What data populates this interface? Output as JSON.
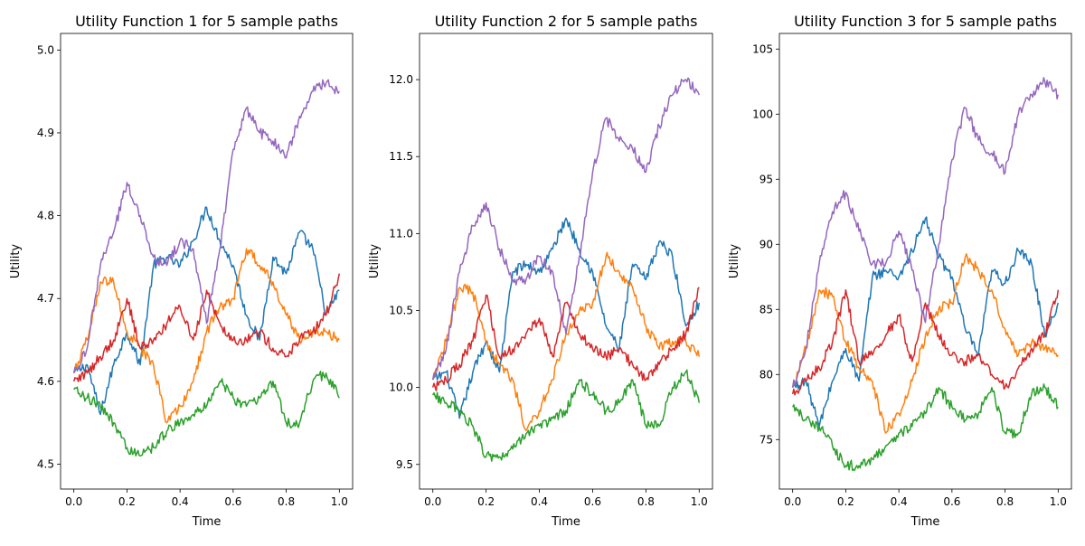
{
  "figure": {
    "colors": [
      "#1f77b4",
      "#ff7f0e",
      "#2ca02c",
      "#d62728",
      "#9467bd"
    ]
  },
  "chart_data": [
    {
      "type": "line",
      "title": "Utility Function 1 for 5 sample paths",
      "xlabel": "Time",
      "ylabel": "Utility",
      "xlim": [
        -0.05,
        1.05
      ],
      "ylim": [
        4.47,
        5.02
      ],
      "xticks": [
        "0.0",
        "0.2",
        "0.4",
        "0.6",
        "0.8",
        "1.0"
      ],
      "yticks": [
        "4.5",
        "4.6",
        "4.7",
        "4.8",
        "4.9",
        "5.0"
      ],
      "x": [
        0.0,
        0.05,
        0.1,
        0.15,
        0.2,
        0.25,
        0.3,
        0.35,
        0.4,
        0.45,
        0.5,
        0.55,
        0.6,
        0.65,
        0.7,
        0.75,
        0.8,
        0.85,
        0.9,
        0.95,
        1.0
      ],
      "series": [
        {
          "values": [
            4.61,
            4.62,
            4.56,
            4.62,
            4.66,
            4.62,
            4.74,
            4.75,
            4.74,
            4.77,
            4.81,
            4.77,
            4.74,
            4.68,
            4.65,
            4.75,
            4.73,
            4.78,
            4.76,
            4.68,
            4.71
          ]
        },
        {
          "values": [
            4.61,
            4.65,
            4.72,
            4.72,
            4.66,
            4.64,
            4.62,
            4.55,
            4.57,
            4.6,
            4.66,
            4.69,
            4.7,
            4.76,
            4.74,
            4.72,
            4.68,
            4.65,
            4.66,
            4.66,
            4.65
          ]
        },
        {
          "values": [
            4.59,
            4.58,
            4.57,
            4.55,
            4.52,
            4.51,
            4.52,
            4.54,
            4.55,
            4.56,
            4.57,
            4.6,
            4.58,
            4.57,
            4.58,
            4.6,
            4.55,
            4.55,
            4.6,
            4.61,
            4.58
          ]
        },
        {
          "values": [
            4.6,
            4.61,
            4.63,
            4.65,
            4.7,
            4.64,
            4.65,
            4.67,
            4.69,
            4.65,
            4.71,
            4.67,
            4.65,
            4.65,
            4.66,
            4.64,
            4.63,
            4.65,
            4.66,
            4.68,
            4.73
          ]
        },
        {
          "values": [
            4.61,
            4.64,
            4.74,
            4.78,
            4.84,
            4.8,
            4.75,
            4.74,
            4.77,
            4.76,
            4.67,
            4.76,
            4.88,
            4.93,
            4.9,
            4.89,
            4.87,
            4.92,
            4.95,
            4.96,
            4.95
          ]
        }
      ]
    },
    {
      "type": "line",
      "title": "Utility Function 2 for 5 sample paths",
      "xlabel": "Time",
      "ylabel": "Utility",
      "xlim": [
        -0.05,
        1.05
      ],
      "ylim": [
        9.34,
        12.3
      ],
      "xticks": [
        "0.0",
        "0.2",
        "0.4",
        "0.6",
        "0.8",
        "1.0"
      ],
      "yticks": [
        "9.5",
        "10.0",
        "10.5",
        "11.0",
        "11.5",
        "12.0"
      ],
      "x": [
        0.0,
        0.05,
        0.1,
        0.15,
        0.2,
        0.25,
        0.3,
        0.35,
        0.4,
        0.45,
        0.5,
        0.55,
        0.6,
        0.65,
        0.7,
        0.75,
        0.8,
        0.85,
        0.9,
        0.95,
        1.0
      ],
      "series": [
        {
          "values": [
            10.05,
            10.1,
            9.8,
            10.1,
            10.3,
            10.1,
            10.75,
            10.8,
            10.75,
            10.9,
            11.1,
            10.9,
            10.75,
            10.4,
            10.25,
            10.8,
            10.7,
            10.95,
            10.85,
            10.4,
            10.55
          ]
        },
        {
          "values": [
            10.05,
            10.3,
            10.65,
            10.62,
            10.3,
            10.15,
            10.05,
            9.72,
            9.85,
            10.05,
            10.35,
            10.5,
            10.55,
            10.85,
            10.75,
            10.65,
            10.4,
            10.25,
            10.3,
            10.3,
            10.2
          ]
        },
        {
          "values": [
            9.95,
            9.9,
            9.85,
            9.75,
            9.55,
            9.55,
            9.6,
            9.7,
            9.75,
            9.8,
            9.85,
            10.05,
            9.95,
            9.85,
            9.9,
            10.05,
            9.75,
            9.75,
            10.0,
            10.1,
            9.9
          ]
        },
        {
          "values": [
            10.0,
            10.05,
            10.15,
            10.3,
            10.6,
            10.2,
            10.25,
            10.35,
            10.45,
            10.2,
            10.55,
            10.35,
            10.25,
            10.2,
            10.25,
            10.15,
            10.05,
            10.15,
            10.25,
            10.35,
            10.65
          ]
        },
        {
          "values": [
            10.05,
            10.25,
            10.75,
            11.05,
            11.2,
            10.9,
            10.7,
            10.7,
            10.85,
            10.75,
            10.35,
            10.85,
            11.4,
            11.75,
            11.6,
            11.55,
            11.4,
            11.7,
            11.9,
            12.0,
            11.9
          ]
        }
      ]
    },
    {
      "type": "line",
      "title": "Utility Function 3 for 5 sample paths",
      "xlabel": "Time",
      "ylabel": "Utility",
      "xlim": [
        -0.05,
        1.05
      ],
      "ylim": [
        71.2,
        106.2
      ],
      "xticks": [
        "0.0",
        "0.2",
        "0.4",
        "0.6",
        "0.8",
        "1.0"
      ],
      "yticks": [
        "75",
        "80",
        "85",
        "90",
        "95",
        "100",
        "105"
      ],
      "x": [
        0.0,
        0.05,
        0.1,
        0.15,
        0.2,
        0.25,
        0.3,
        0.35,
        0.4,
        0.45,
        0.5,
        0.55,
        0.6,
        0.65,
        0.7,
        0.75,
        0.8,
        0.85,
        0.9,
        0.95,
        1.0
      ],
      "series": [
        {
          "values": [
            79.0,
            79.5,
            76.0,
            79.5,
            82.0,
            79.5,
            87.5,
            88.0,
            87.5,
            89.5,
            92.0,
            89.0,
            87.5,
            83.5,
            81.5,
            88.0,
            87.0,
            89.5,
            88.5,
            83.0,
            85.5
          ]
        },
        {
          "values": [
            79.0,
            82.0,
            86.5,
            86.0,
            82.5,
            80.5,
            79.5,
            75.5,
            77.0,
            79.5,
            83.0,
            85.0,
            85.5,
            89.0,
            88.0,
            86.5,
            83.5,
            81.5,
            82.5,
            82.0,
            81.5
          ]
        },
        {
          "values": [
            77.5,
            76.5,
            76.0,
            74.5,
            73.0,
            73.0,
            73.5,
            74.5,
            75.5,
            76.0,
            77.0,
            79.0,
            77.5,
            76.5,
            77.0,
            79.0,
            75.5,
            75.5,
            78.5,
            79.0,
            77.5
          ]
        },
        {
          "values": [
            78.5,
            79.5,
            80.5,
            82.5,
            86.5,
            81.0,
            81.5,
            83.0,
            84.5,
            81.0,
            85.5,
            83.0,
            81.5,
            81.0,
            81.5,
            80.0,
            79.0,
            80.5,
            82.0,
            83.0,
            86.5
          ]
        },
        {
          "values": [
            79.0,
            82.0,
            88.5,
            92.5,
            94.0,
            91.0,
            88.5,
            88.5,
            91.0,
            88.0,
            84.0,
            90.0,
            96.5,
            100.5,
            98.0,
            97.0,
            95.5,
            100.0,
            101.5,
            102.5,
            101.5
          ]
        }
      ]
    }
  ]
}
